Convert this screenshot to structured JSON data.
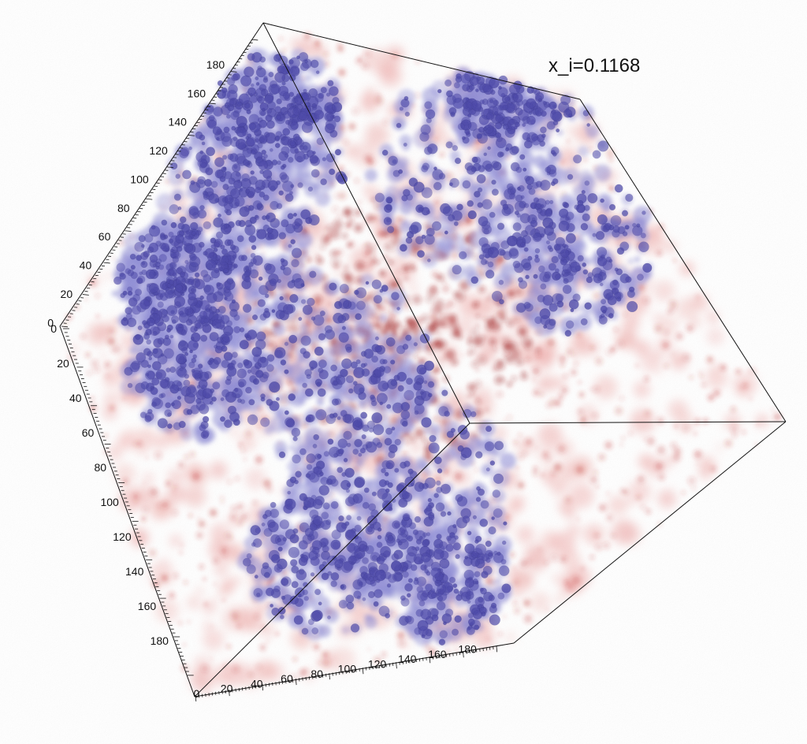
{
  "figure": {
    "title": "x_i=0.1168",
    "colors": {
      "ionized_blue": "#4a46a8",
      "ionized_blue_light": "#8e8cd6",
      "neutral_red": "#c0302c",
      "neutral_red_light": "#f1b6b4",
      "edge": "#111111"
    }
  },
  "axes": {
    "left_axis_ticks": [
      "0",
      "20",
      "40",
      "60",
      "80",
      "100",
      "120",
      "140",
      "160",
      "180"
    ],
    "upper_axis_ticks": [
      "0",
      "20",
      "40",
      "60",
      "80",
      "100",
      "120",
      "140",
      "160",
      "180"
    ],
    "bottom_axis_ticks": [
      "0",
      "20",
      "40",
      "60",
      "80",
      "100",
      "120",
      "140",
      "160",
      "180"
    ]
  }
}
